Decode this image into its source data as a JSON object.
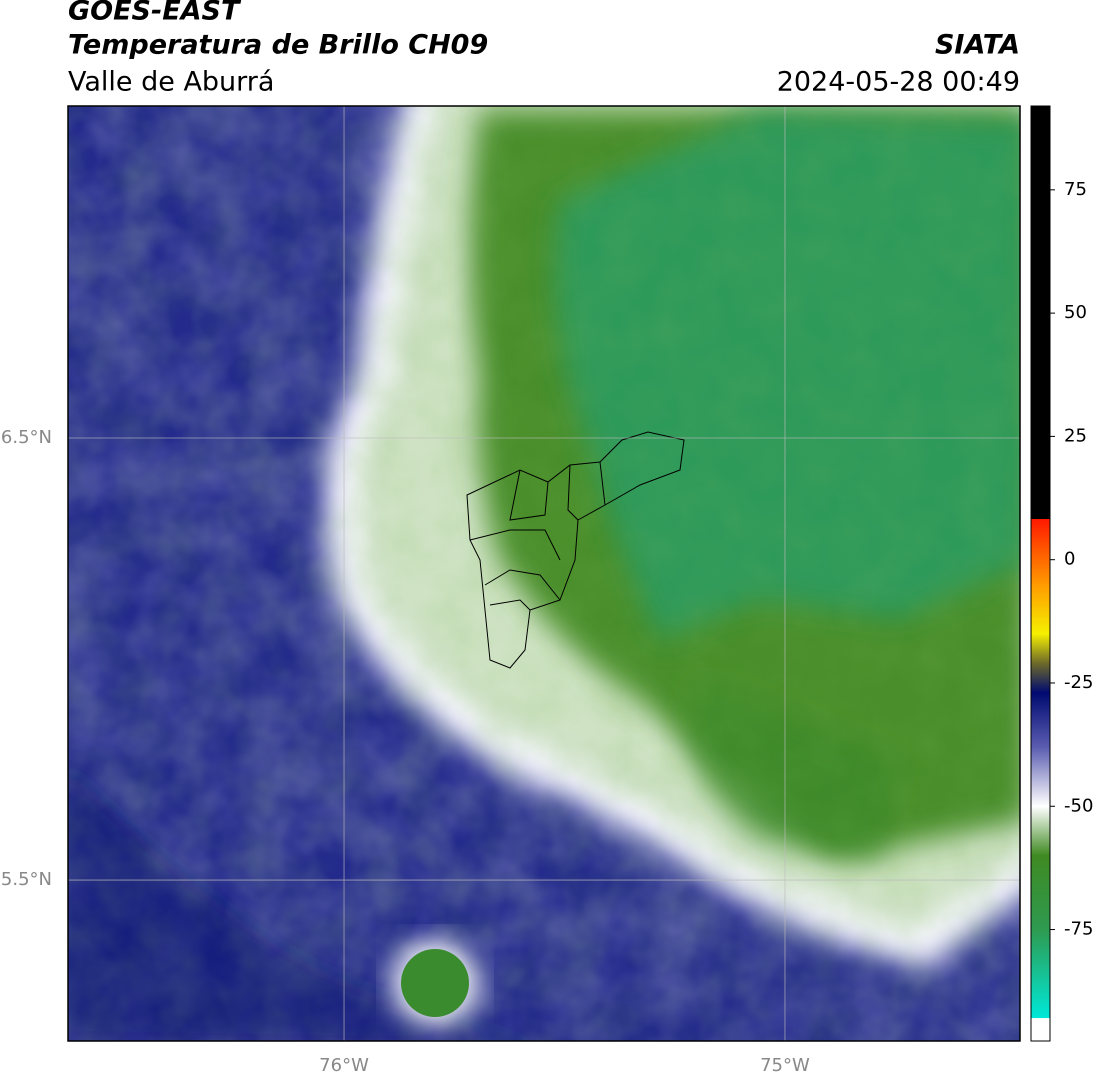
{
  "header": {
    "line1": "GOES-EAST",
    "line2": "Temperatura de Brillo CH09",
    "line3": "Valle de Aburrá",
    "source": "SIATA",
    "datetime": "2024-05-28 00:49"
  },
  "map": {
    "lonlim": [
      -76.626,
      -74.467
    ],
    "latlim": [
      5.136,
      7.251
    ],
    "lonticks": [
      {
        "value": -76,
        "label": "76°W"
      },
      {
        "value": -75,
        "label": "75°W"
      }
    ],
    "latticks": [
      {
        "value": 6.5,
        "label": "6.5°N"
      },
      {
        "value": 5.5,
        "label": "5.5°N"
      }
    ]
  },
  "colorbar": {
    "range": [
      -97.6,
      92
    ],
    "ticks": [
      75,
      50,
      25,
      0,
      -25,
      -50,
      -75
    ],
    "stops": [
      {
        "value": 92,
        "color": "#000000"
      },
      {
        "value": 8.3,
        "color": "#000000"
      },
      {
        "value": 8.2,
        "color": "#ff1a00"
      },
      {
        "value": -5,
        "color": "#ff9a00"
      },
      {
        "value": -15,
        "color": "#f5f000"
      },
      {
        "value": -21,
        "color": "#6e6a2a"
      },
      {
        "value": -27,
        "color": "#000a70"
      },
      {
        "value": -38,
        "color": "#5a5cb0"
      },
      {
        "value": -50,
        "color": "#ffffff"
      },
      {
        "value": -60,
        "color": "#3f8a22"
      },
      {
        "value": -75,
        "color": "#2e9a50"
      },
      {
        "value": -92.9,
        "color": "#00e8d8"
      },
      {
        "value": -93,
        "color": "#ffffff"
      },
      {
        "value": -97.6,
        "color": "#ffffff"
      }
    ]
  }
}
